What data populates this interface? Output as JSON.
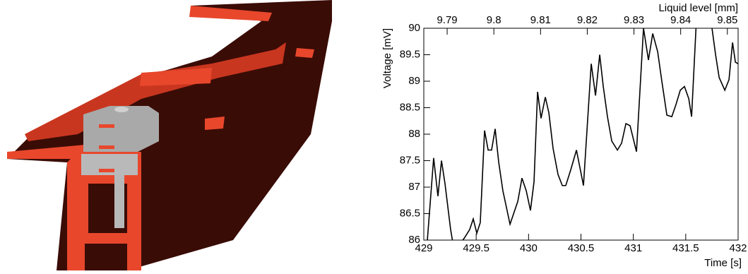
{
  "chart_data": {
    "type": "line",
    "x_label": "Time [s]",
    "y_label": "Voltage [mV]",
    "x2_label": "Liquid level [mm]",
    "xlim": [
      429,
      432
    ],
    "xticks": [
      429,
      429.5,
      430,
      430.5,
      431,
      431.5,
      432
    ],
    "ylim": [
      86,
      90
    ],
    "yticks": [
      86,
      86.5,
      87,
      87.5,
      88,
      88.5,
      89,
      89.5,
      90
    ],
    "x2lim": [
      9.785,
      9.8523
    ],
    "x2ticks": [
      9.79,
      9.8,
      9.81,
      9.82,
      9.83,
      9.84,
      9.85
    ],
    "grid": false,
    "x": [
      429.034,
      429.094,
      429.135,
      429.169,
      429.202,
      429.256,
      429.29,
      429.384,
      429.438,
      429.472,
      429.506,
      429.539,
      429.58,
      429.614,
      429.647,
      429.681,
      429.715,
      429.755,
      429.823,
      429.897,
      429.937,
      429.978,
      430.018,
      430.052,
      430.086,
      430.119,
      430.16,
      430.194,
      430.234,
      430.281,
      430.322,
      430.355,
      430.403,
      430.457,
      430.524,
      430.598,
      430.639,
      430.679,
      430.713,
      430.753,
      430.794,
      430.848,
      430.888,
      430.929,
      430.969,
      431.03,
      431.097,
      431.144,
      431.185,
      431.232,
      431.272,
      431.32,
      431.367,
      431.407,
      431.448,
      431.488,
      431.529,
      431.556,
      431.603,
      431.67,
      431.744,
      431.785,
      431.819,
      431.873,
      431.913,
      431.947,
      431.974,
      432.0
    ],
    "series": [
      {
        "color": "#000000",
        "values": [
          86.0,
          87.55,
          86.83,
          87.5,
          87.07,
          86.2,
          85.8,
          86.03,
          86.2,
          86.4,
          86.13,
          86.33,
          88.07,
          87.7,
          87.7,
          88.1,
          87.47,
          86.93,
          86.3,
          86.73,
          87.17,
          86.93,
          86.56,
          87.1,
          88.8,
          88.3,
          88.7,
          88.4,
          87.73,
          87.24,
          87.03,
          87.03,
          87.33,
          87.7,
          87.03,
          89.33,
          88.73,
          89.5,
          88.9,
          88.33,
          87.87,
          87.7,
          87.83,
          88.2,
          88.16,
          87.67,
          90.0,
          89.4,
          89.9,
          89.56,
          89.0,
          88.36,
          88.33,
          88.56,
          88.83,
          88.9,
          88.67,
          88.33,
          90.2,
          90.4,
          90.1,
          89.5,
          89.07,
          88.83,
          89.03,
          89.73,
          89.36,
          89.33
        ]
      }
    ]
  }
}
